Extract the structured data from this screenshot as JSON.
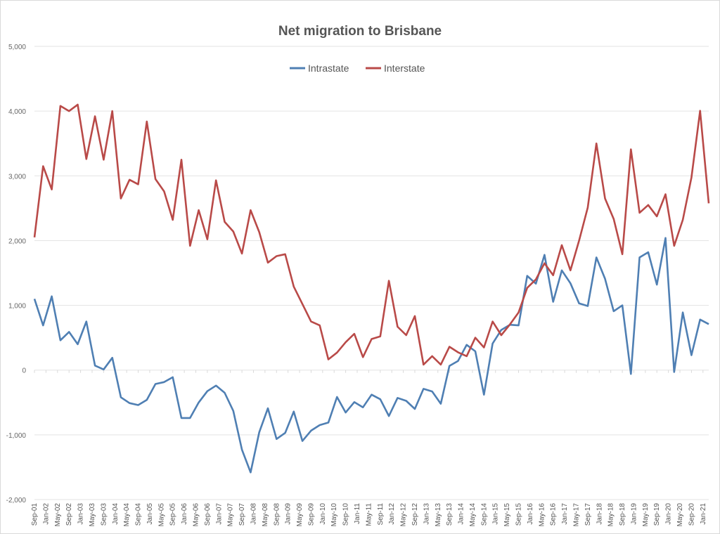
{
  "chart_data": {
    "type": "line",
    "title": "Net migration to Brisbane",
    "xlabel": "",
    "ylabel": "",
    "ylim": [
      -2000,
      5000
    ],
    "ytick_step": 1000,
    "yticks": [
      "-2,000",
      "-1,000",
      "0",
      "1,000",
      "2,000",
      "3,000",
      "4,000",
      "5,000"
    ],
    "grid": true,
    "legend_position": "top-center",
    "x_frequency": "quarterly, Sep-01 to Mar-21",
    "x_tick_labels": [
      "Sep-01",
      "Jan-02",
      "May-02",
      "Sep-02",
      "Jan-03",
      "May-03",
      "Sep-03",
      "Jan-04",
      "May-04",
      "Sep-04",
      "Jan-05",
      "May-05",
      "Sep-05",
      "Jan-06",
      "May-06",
      "Sep-06",
      "Jan-07",
      "May-07",
      "Sep-07",
      "Jan-08",
      "May-08",
      "Sep-08",
      "Jan-09",
      "May-09",
      "Sep-09",
      "Jan-10",
      "May-10",
      "Sep-10",
      "Jan-11",
      "May-11",
      "Sep-11",
      "Jan-12",
      "May-12",
      "Sep-12",
      "Jan-13",
      "May-13",
      "Sep-13",
      "Jan-14",
      "May-14",
      "Sep-14",
      "Jan-15",
      "May-15",
      "Sep-15",
      "Jan-16",
      "May-16",
      "Sep-16",
      "Jan-17",
      "May-17",
      "Sep-17",
      "Jan-18",
      "May-18",
      "Sep-18",
      "Jan-19",
      "May-19",
      "Sep-19",
      "Jan-20",
      "May-20",
      "Sep-20",
      "Jan-21"
    ],
    "series": [
      {
        "name": "Intrastate",
        "color": "#4f7fb3",
        "values": [
          1100,
          690,
          1140,
          460,
          590,
          400,
          750,
          70,
          10,
          190,
          -420,
          -510,
          -540,
          -460,
          -215,
          -185,
          -110,
          -740,
          -740,
          -500,
          -325,
          -240,
          -350,
          -630,
          -1230,
          -1580,
          -960,
          -590,
          -1065,
          -970,
          -640,
          -1095,
          -935,
          -850,
          -810,
          -415,
          -655,
          -495,
          -575,
          -380,
          -450,
          -710,
          -430,
          -475,
          -600,
          -290,
          -330,
          -520,
          65,
          140,
          390,
          290,
          -380,
          410,
          620,
          700,
          690,
          1455,
          1335,
          1780,
          1055,
          1540,
          1340,
          1030,
          990,
          1740,
          1410,
          910,
          1000,
          -60,
          1740,
          1820,
          1320,
          2040,
          -30,
          890,
          230,
          780,
          710
        ]
      },
      {
        "name": "Interstate",
        "color": "#b94a48",
        "values": [
          2050,
          3150,
          2790,
          4080,
          4000,
          4100,
          3260,
          3920,
          3250,
          4000,
          2650,
          2940,
          2870,
          3840,
          2950,
          2760,
          2320,
          3250,
          1920,
          2470,
          2020,
          2930,
          2290,
          2140,
          1800,
          2470,
          2130,
          1660,
          1760,
          1790,
          1290,
          1020,
          750,
          690,
          165,
          270,
          430,
          560,
          200,
          480,
          520,
          1380,
          670,
          540,
          835,
          85,
          215,
          85,
          360,
          275,
          215,
          500,
          350,
          750,
          540,
          705,
          890,
          1270,
          1400,
          1650,
          1465,
          1930,
          1540,
          2000,
          2510,
          3500,
          2650,
          2335,
          1790,
          3410,
          2430,
          2550,
          2375,
          2715,
          1920,
          2320,
          2975,
          4005,
          2575
        ]
      }
    ]
  }
}
